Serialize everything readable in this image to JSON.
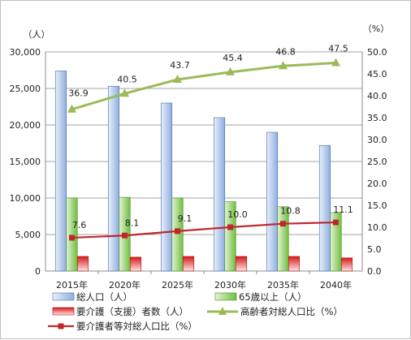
{
  "chart_data": {
    "type": "bar",
    "categories": [
      "2015年",
      "2020年",
      "2025年",
      "2030年",
      "2035年",
      "2040年"
    ],
    "left_axis": {
      "unit_label": "（人）",
      "ylim": [
        0,
        30000
      ],
      "ticks": [
        "0",
        "5,000",
        "10,000",
        "15,000",
        "20,000",
        "25,000",
        "30,000"
      ]
    },
    "right_axis": {
      "unit_label": "（%）",
      "ylim": [
        0,
        50
      ],
      "ticks": [
        "0.0",
        "5.0",
        "10.0",
        "15.0",
        "20.0",
        "25.0",
        "30.0",
        "35.0",
        "40.0",
        "45.0",
        "50.0"
      ]
    },
    "series": [
      {
        "name": "総人口（人）",
        "kind": "bar",
        "axis": "left",
        "color": "#a9c3e8",
        "values": [
          27400,
          25300,
          23000,
          21000,
          19000,
          17200
        ]
      },
      {
        "name": "65歳以上（人）",
        "kind": "bar",
        "axis": "left",
        "color": "#8fcf63",
        "values": [
          10000,
          10100,
          10000,
          9500,
          8800,
          8000
        ]
      },
      {
        "name": "要介護（支援）者数（人）",
        "kind": "bar",
        "axis": "left",
        "color": "#e02020",
        "values": [
          2000,
          1900,
          2000,
          2000,
          2000,
          1800
        ]
      },
      {
        "name": "高齢者対総人口比（%）",
        "kind": "line",
        "axis": "right",
        "color": "#9bbb59",
        "marker": "triangle",
        "values": [
          36.9,
          40.5,
          43.7,
          45.4,
          46.8,
          47.5
        ],
        "labels": [
          "36.9",
          "40.5",
          "43.7",
          "45.4",
          "46.8",
          "47.5"
        ]
      },
      {
        "name": "要介護者等対総人口比（%）",
        "kind": "line",
        "axis": "right",
        "color": "#c0272d",
        "marker": "square",
        "values": [
          7.6,
          8.1,
          9.1,
          10.0,
          10.8,
          11.1
        ],
        "labels": [
          "7.6",
          "8.1",
          "9.1",
          "10.0",
          "10.8",
          "11.1"
        ]
      }
    ],
    "grid": true
  }
}
